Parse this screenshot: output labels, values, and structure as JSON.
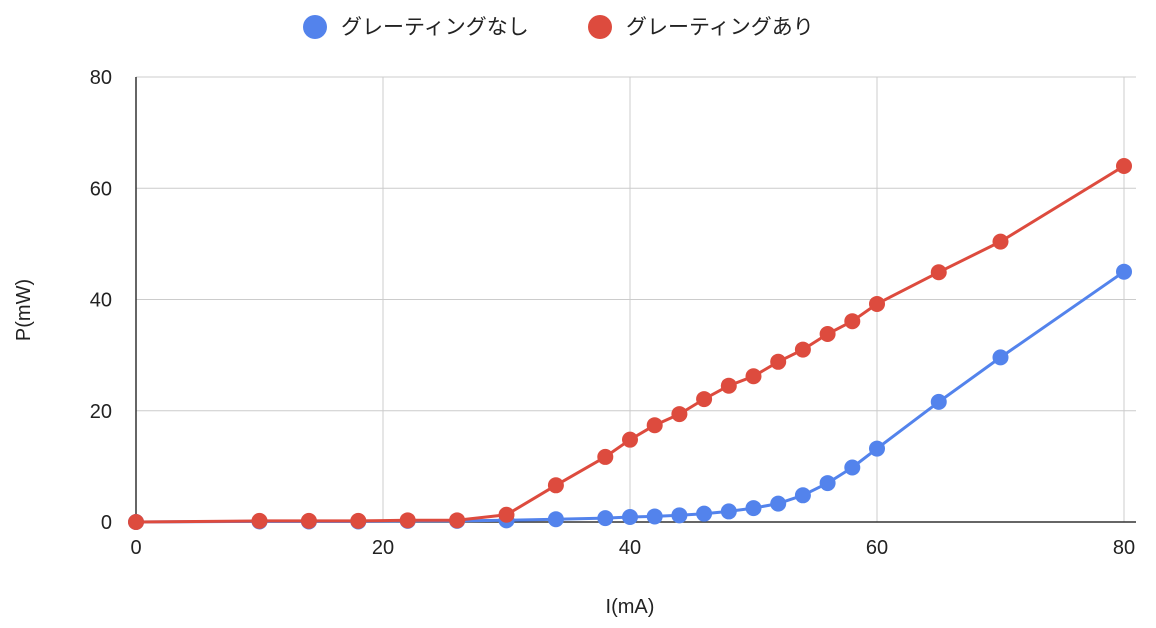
{
  "chart_data": {
    "type": "line",
    "xlabel": "I(mA)",
    "ylabel": "P(mW)",
    "xlim": [
      0,
      80
    ],
    "ylim": [
      0,
      80
    ],
    "xticks": [
      0,
      20,
      40,
      60,
      80
    ],
    "yticks": [
      0,
      20,
      40,
      60,
      80
    ],
    "grid": true,
    "legend_position": "top",
    "series": [
      {
        "name": "グレーティングなし",
        "color": "#5383ec",
        "x": [
          0,
          10,
          14,
          18,
          22,
          26,
          30,
          34,
          38,
          40,
          42,
          44,
          46,
          48,
          50,
          52,
          54,
          56,
          58,
          60,
          65,
          70,
          80
        ],
        "y": [
          0,
          0.1,
          0.1,
          0.1,
          0.2,
          0.2,
          0.3,
          0.5,
          0.7,
          0.9,
          1.0,
          1.2,
          1.5,
          1.9,
          2.5,
          3.3,
          4.8,
          7.0,
          9.8,
          13.2,
          21.6,
          29.6,
          45.0
        ]
      },
      {
        "name": "グレーティングあり",
        "color": "#dd4b3e",
        "x": [
          0,
          10,
          14,
          18,
          22,
          26,
          30,
          34,
          38,
          40,
          42,
          44,
          46,
          48,
          50,
          52,
          54,
          56,
          58,
          60,
          65,
          70,
          80
        ],
        "y": [
          0,
          0.2,
          0.2,
          0.2,
          0.3,
          0.3,
          1.3,
          6.6,
          11.7,
          14.8,
          17.4,
          19.4,
          22.1,
          24.5,
          26.2,
          28.8,
          31.0,
          33.8,
          36.1,
          39.2,
          44.9,
          50.4,
          64.0
        ]
      }
    ]
  }
}
